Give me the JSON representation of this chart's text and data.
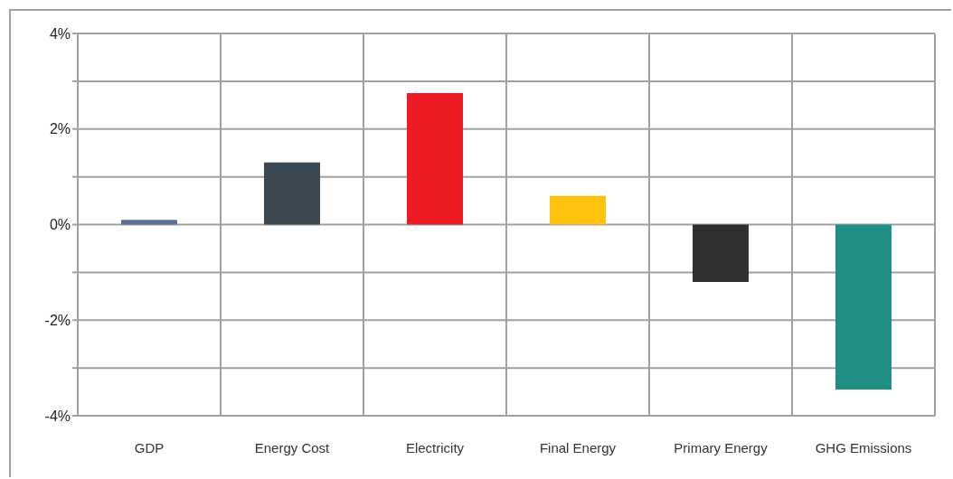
{
  "chart_data": {
    "type": "bar",
    "categories": [
      "GDP",
      "Energy Cost",
      "Electricity",
      "Final Energy",
      "Primary Energy",
      "GHG Emissions"
    ],
    "values": [
      0.1,
      1.3,
      2.75,
      0.6,
      -1.2,
      -3.45
    ],
    "colors": [
      "#5b7191",
      "#3b4851",
      "#ed1c24",
      "#ffc20e",
      "#313031",
      "#1f8f84"
    ],
    "ylim": [
      -4,
      4
    ],
    "yticks": [
      {
        "value": -4,
        "label": "-4%"
      },
      {
        "value": -3,
        "label": null
      },
      {
        "value": -2,
        "label": "-2%"
      },
      {
        "value": -1,
        "label": null
      },
      {
        "value": 0,
        "label": "0%"
      },
      {
        "value": 1,
        "label": null
      },
      {
        "value": 2,
        "label": "2%"
      },
      {
        "value": 3,
        "label": null
      },
      {
        "value": 4,
        "label": "4%"
      }
    ],
    "grid": true
  }
}
